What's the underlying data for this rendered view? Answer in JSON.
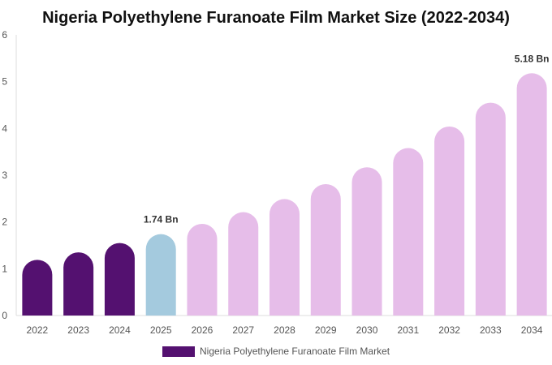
{
  "chart_data": {
    "type": "bar",
    "title": "Nigeria Polyethylene Furanoate Film Market Size (2022-2034)",
    "categories": [
      "2022",
      "2023",
      "2024",
      "2025",
      "2026",
      "2027",
      "2028",
      "2029",
      "2030",
      "2031",
      "2032",
      "2033",
      "2034"
    ],
    "series": [
      {
        "name": "Nigeria Polyethylene Furanoate Film Market",
        "values": [
          1.19,
          1.35,
          1.55,
          1.74,
          1.96,
          2.21,
          2.49,
          2.81,
          3.17,
          3.58,
          4.04,
          4.55,
          5.18
        ]
      }
    ],
    "data_labels": [
      {
        "category": "2025",
        "text": "1.74 Bn"
      },
      {
        "category": "2034",
        "text": "5.18 Bn"
      }
    ],
    "ylim": [
      0,
      6
    ],
    "yticks": [
      0,
      1,
      2,
      3,
      4,
      5,
      6
    ],
    "grid": false,
    "legend": "bottom",
    "colors": {
      "historical": "#541170",
      "base_year": "#a4cade",
      "forecast": "#e6bde9"
    },
    "color_by_category": [
      "historical",
      "historical",
      "historical",
      "base_year",
      "forecast",
      "forecast",
      "forecast",
      "forecast",
      "forecast",
      "forecast",
      "forecast",
      "forecast",
      "forecast"
    ]
  }
}
